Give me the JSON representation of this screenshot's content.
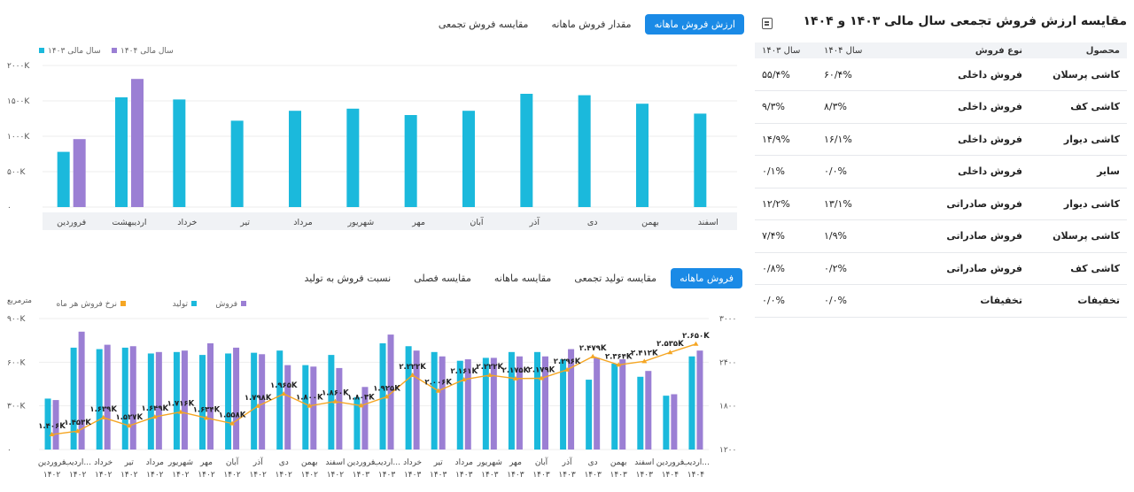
{
  "panel": {
    "title": "مقایسه ارزش فروش تجمعی سال مالی ۱۴۰۳ و ۱۴۰۴",
    "table": {
      "headers": [
        "محصول",
        "نوع فروش",
        "سال ۱۴۰۴",
        "سال ۱۴۰۳"
      ],
      "rows": [
        {
          "product": "کاشی پرسلان",
          "type": "فروش داخلی",
          "y1404": "۶۰/۴%",
          "y1403": "۵۵/۴%"
        },
        {
          "product": "کاشی کف",
          "type": "فروش داخلی",
          "y1404": "۸/۳%",
          "y1403": "۹/۳%"
        },
        {
          "product": "کاشی دیوار",
          "type": "فروش داخلی",
          "y1404": "۱۶/۱%",
          "y1403": "۱۴/۹%"
        },
        {
          "product": "سایر",
          "type": "فروش داخلی",
          "y1404": "۰/۰%",
          "y1403": "۰/۱%"
        },
        {
          "product": "کاشی دیوار",
          "type": "فروش صادراتی",
          "y1404": "۱۳/۱%",
          "y1403": "۱۲/۲%"
        },
        {
          "product": "کاشی پرسلان",
          "type": "فروش صادراتی",
          "y1404": "۱/۹%",
          "y1403": "۷/۴%"
        },
        {
          "product": "کاشی کف",
          "type": "فروش صادراتی",
          "y1404": "۰/۲%",
          "y1403": "۰/۸%"
        },
        {
          "product": "تخفیفات",
          "type": "تخفیفات",
          "y1404": "۰/۰%",
          "y1403": "۰/۰%"
        }
      ]
    }
  },
  "top_tabs": [
    "ارزش فروش ماهانه",
    "مقدار فروش ماهانه",
    "مقایسه فروش تجمعی"
  ],
  "bottom_tabs": [
    "فروش ماهانه",
    "مقایسه تولید تجمعی",
    "مقایسه ماهانه",
    "مقایسه فصلی",
    "نسبت فروش به تولید"
  ],
  "colors": {
    "y1403": "#1bb9dc",
    "y1404": "#9b7fd4",
    "production": "#1bb9dc",
    "sales": "#9b7fd4",
    "rate": "#f5a623",
    "accent": "#1a8ae6"
  },
  "chart_data": [
    {
      "type": "bar",
      "categories": [
        "فروردین",
        "اردیبهشت",
        "خرداد",
        "تیر",
        "مرداد",
        "شهریور",
        "مهر",
        "آبان",
        "آذر",
        "دی",
        "بهمن",
        "اسفند"
      ],
      "series": [
        {
          "name": "سال مالی ۱۴۰۳",
          "values": [
            780,
            1550,
            1520,
            1220,
            1360,
            1390,
            1300,
            1360,
            1600,
            1580,
            1460,
            1320
          ]
        },
        {
          "name": "سال مالی ۱۴۰۴",
          "values": [
            960,
            1810,
            null,
            null,
            null,
            null,
            null,
            null,
            null,
            null,
            null,
            null
          ]
        }
      ],
      "yticks": [
        "۰",
        "۵۰۰K",
        "۱۰۰۰K",
        "۱۵۰۰K",
        "۲۰۰۰K"
      ],
      "ylim": [
        0,
        2000
      ],
      "legend": "top-left"
    },
    {
      "type": "bar",
      "categories": [
        "فروردین ۱۴۰۲",
        "اردیب... ۱۴۰۲",
        "خرداد ۱۴۰۲",
        "تیر ۱۴۰۲",
        "مرداد ۱۴۰۲",
        "شهریور ۱۴۰۲",
        "مهر ۱۴۰۲",
        "آبان ۱۴۰۲",
        "آذر ۱۴۰۲",
        "دی ۱۴۰۲",
        "بهمن ۱۴۰۲",
        "اسفند ۱۴۰۲",
        "فروردین ۱۴۰۳",
        "اردیب... ۱۴۰۳",
        "خرداد ۱۴۰۳",
        "تیر ۱۴۰۳",
        "مرداد ۱۴۰۳",
        "شهریور ۱۴۰۳",
        "مهر ۱۴۰۳",
        "آبان ۱۴۰۳",
        "آذر ۱۴۰۳",
        "دی ۱۴۰۳",
        "بهمن ۱۴۰۳",
        "اسفند ۱۴۰۳",
        "فروردین ۱۴۰۴",
        "اردیب... ۱۴۰۴"
      ],
      "series": [
        {
          "name": "تولید",
          "values": [
            350,
            700,
            690,
            700,
            660,
            670,
            650,
            660,
            665,
            680,
            580,
            650,
            360,
            730,
            710,
            670,
            610,
            630,
            670,
            670,
            620,
            480,
            590,
            500,
            370,
            640
          ]
        },
        {
          "name": "فروش",
          "values": [
            340,
            810,
            720,
            710,
            670,
            680,
            730,
            700,
            655,
            580,
            570,
            560,
            430,
            790,
            680,
            640,
            620,
            630,
            640,
            640,
            690,
            630,
            620,
            540,
            380,
            680
          ]
        },
        {
          "name": "نرخ فروش هر ماه",
          "values": [
            1406,
            1453,
            1639,
            1527,
            1649,
            1716,
            1634,
            1558,
            1798,
            1965,
            1800,
            1860,
            1803,
            1925,
            2222,
            2006,
            2161,
            2222,
            2175,
            2179,
            2296,
            2479,
            2364,
            2412,
            2535,
            2650
          ]
        }
      ],
      "rate_labels": [
        "۱.۴۰۶K",
        "۱.۴۵۳K",
        "۱.۶۳۹K",
        "۱.۵۲۷K",
        "۱.۶۴۹K",
        "۱.۷۱۶K",
        "۱.۶۳۴K",
        "۱.۵۵۸K",
        "۱.۷۹۸K",
        "۱.۹۶۵K",
        "۱.۸۰۰K",
        "۱.۸۶۰K",
        "۱.۸۰۳K",
        "۱.۹۲۵K",
        "۲.۲۲۲K",
        "۲.۰۰۶K",
        "۲.۱۶۱K",
        "۲.۲۲۲K",
        "۲.۱۷۵K",
        "۲.۱۷۹K",
        "۲.۲۹۶K",
        "۲.۴۷۹K",
        "۲.۳۶۴K",
        "۲.۴۱۲K",
        "۲.۵۳۵K",
        "۲.۶۵۰K"
      ],
      "yticks_left": [
        "۰",
        "۳۰۰K",
        "۶۰۰K",
        "۹۰۰K"
      ],
      "ylim_left": [
        0,
        900
      ],
      "yticks_right": [
        "۱۲۰۰",
        "۱۸۰۰",
        "۲۴۰۰",
        "۳۰۰۰"
      ],
      "ylim_right": [
        1200,
        3000
      ],
      "unit_label": "مترمربع",
      "legend": "top-left"
    }
  ]
}
